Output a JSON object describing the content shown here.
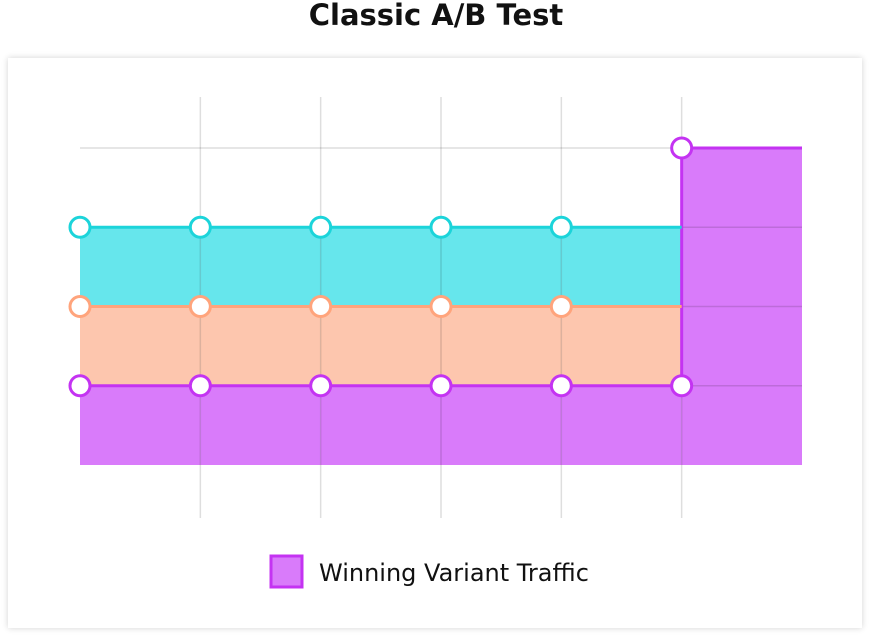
{
  "chart_data": {
    "type": "stacked-step-area",
    "title": "Classic A/B Test",
    "x": [
      0,
      1,
      2,
      3,
      4,
      5
    ],
    "xlim": [
      0,
      6
    ],
    "ylim": [
      0,
      100
    ],
    "xticks": [
      1,
      2,
      3,
      4,
      5
    ],
    "yticks": [
      25,
      50,
      75,
      100
    ],
    "grid": true,
    "series": [
      {
        "name": "Winning Variant Traffic",
        "color": "#c433f2",
        "fill": "#d97bfa",
        "values": [
          25,
          25,
          25,
          25,
          25,
          100
        ]
      },
      {
        "color": "#ffa47c",
        "fill": "#fdc6ae",
        "values": [
          25,
          25,
          25,
          25,
          25,
          0
        ]
      },
      {
        "color": "#1cd4da",
        "fill": "#66e6ec",
        "values": [
          25,
          25,
          25,
          25,
          25,
          0
        ]
      }
    ],
    "legend": "bottom"
  }
}
